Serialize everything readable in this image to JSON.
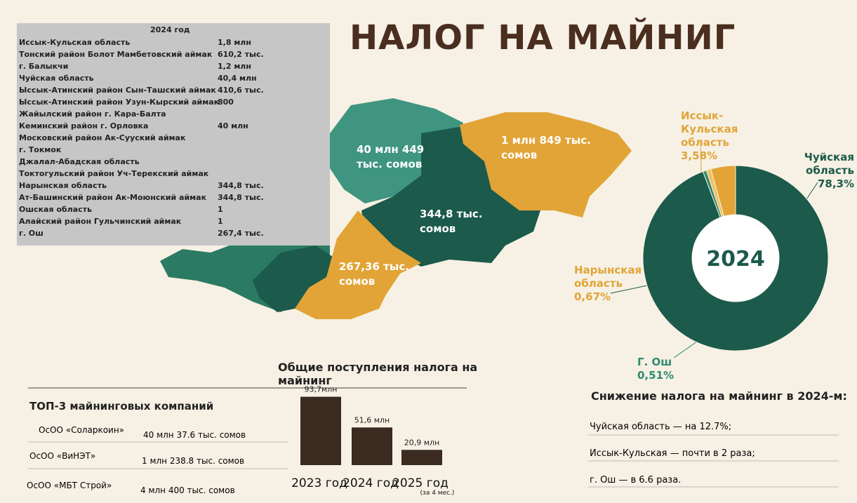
{
  "title": "НАЛОГ НА МАЙНИГ",
  "table": {
    "header": "2024 год",
    "rows": [
      [
        "Иссык-Кульская область",
        "1,8 млн"
      ],
      [
        "Тонский район Болот Мамбетовский аймак",
        "610,2 тыс."
      ],
      [
        "г. Балыкчи",
        "1,2 млн"
      ],
      [
        "Чуйская область",
        "40,4 млн"
      ],
      [
        "Ыссык-Атинский район Сын-Ташский аймак",
        "410,6 тыс."
      ],
      [
        "Ыссык-Атинский район Узун-Кырский аймак",
        "800"
      ],
      [
        "Жайылский район г. Кара-Балта"
      ],
      [
        "Кеминский район г. Орловка",
        "40 млн"
      ],
      [
        "Московский район Ак-Сууский аймак"
      ],
      [
        "г. Токмок"
      ],
      [
        "Джалал-Абадская область"
      ],
      [
        "Токтогульский район Уч-Терекский аймак"
      ],
      [
        "Нарынская область",
        "344,8 тыс."
      ],
      [
        "Ат-Башинский район Ак-Моюнский аймак",
        "344,8 тыс."
      ],
      [
        "Ошская область",
        "1"
      ],
      [
        "Алайский район Гульчинский аймак",
        "1"
      ],
      [
        "г. Ош",
        "267,4 тыс."
      ]
    ]
  },
  "map_labels": [
    "40 млн 449 тыс. сомов",
    "1 млн 849 тыс. сомов",
    "344,8 тыс. сомов",
    "267,36 тыс. сомов"
  ],
  "chart_data": [
    {
      "type": "pie",
      "center_label": "2024",
      "categories": [
        "Чуйская область",
        "Г. Ош",
        "Нарынская область",
        "Иссык-Кульская область"
      ],
      "values": [
        78.3,
        0.51,
        0.67,
        3.58
      ],
      "value_labels": [
        "78,3%",
        "0,51%",
        "0,67%",
        "3,58%"
      ],
      "colors": [
        "#1c5a4b",
        "#2f8a70",
        "#efc261",
        "#e2a437"
      ]
    },
    {
      "type": "bar",
      "title": "Общие поступления налога на майнинг",
      "categories": [
        "2023 год",
        "2024 год",
        "2025 год"
      ],
      "note": "(за 4 мес.)",
      "values": [
        93.7,
        51.6,
        20.9
      ],
      "value_labels": [
        "93,7млн",
        "51,6 млн",
        "20,9 млн"
      ],
      "color": "#3a2a20"
    }
  ],
  "top3": {
    "title": "ТОП-3 майнинговых компаний",
    "rows": [
      [
        "ОсОО «Соларкоин»",
        "40 млн 37.6 тыс. сомов"
      ],
      [
        "ОсОО «ВиНЭТ»",
        "1 млн 238.8 тыс. сомов"
      ],
      [
        "ОсОО «МБТ Строй»",
        "4 млн 400 тыс. сомов"
      ]
    ]
  },
  "decline": {
    "title": "Снижение налога на майнинг в 2024-м:",
    "items": [
      "Чуйская область — на 12.7%;",
      "Иссык-Кульская — почти в 2 раза;",
      "г. Ош — в 6.6 раза."
    ]
  }
}
